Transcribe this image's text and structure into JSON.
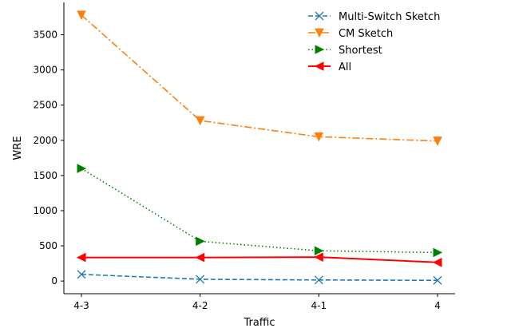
{
  "chart_data": {
    "type": "line",
    "xlabel": "Traffic",
    "ylabel": "WRE",
    "categories": [
      "4-3",
      "4-2",
      "4-1",
      "4"
    ],
    "ylim": [
      -180,
      3960
    ],
    "yticks": [
      0,
      500,
      1000,
      1500,
      2000,
      2500,
      3000,
      3500
    ],
    "legend_position": "top-right",
    "grid": false,
    "series": [
      {
        "name": "Multi-Switch Sketch",
        "values": [
          95,
          25,
          15,
          10
        ],
        "color": "#1f77b4",
        "dash": "dashed",
        "marker": "x"
      },
      {
        "name": "CM Sketch",
        "values": [
          3780,
          2280,
          2050,
          1990
        ],
        "color": "#ff7f0e",
        "dash": "dashdot",
        "marker": "triangle-down"
      },
      {
        "name": "Shortest",
        "values": [
          1600,
          565,
          430,
          405
        ],
        "color": "#008000",
        "dash": "dotted",
        "marker": "triangle-right"
      },
      {
        "name": "All",
        "values": [
          335,
          335,
          340,
          265
        ],
        "color": "#ff0000",
        "dash": "solid",
        "marker": "triangle-left"
      }
    ]
  }
}
